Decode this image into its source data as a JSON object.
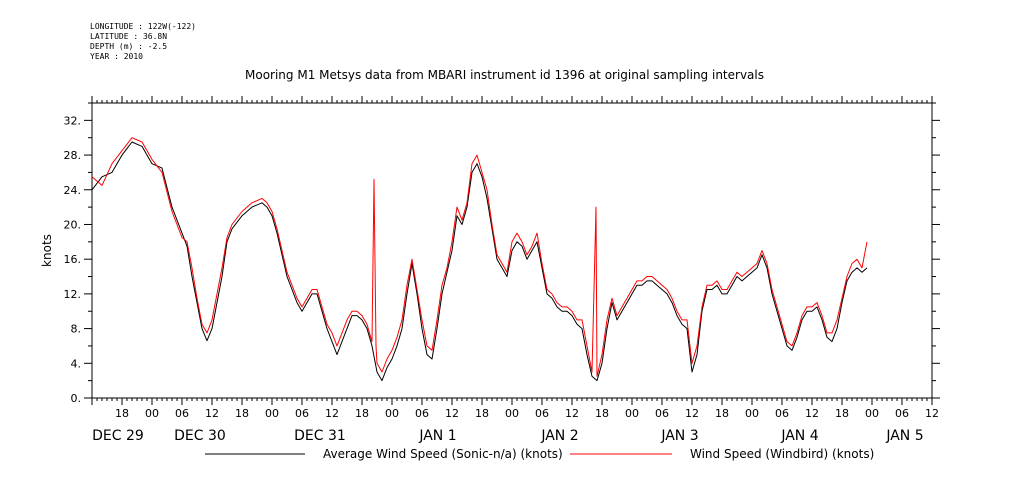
{
  "header": {
    "longitude": "LONGITUDE : 122W(-122)",
    "latitude": "LATITUDE : 36.8N",
    "depth": "DEPTH (m) : -2.5",
    "year": "YEAR : 2010"
  },
  "chart_data": {
    "type": "line",
    "title": "Mooring M1 Metsys data from MBARI instrument id 1396 at original sampling intervals",
    "ylabel": "knots",
    "xlabel": "",
    "ylim": [
      0,
      34
    ],
    "y_ticks": [
      "0.",
      "4.",
      "8.",
      "12.",
      "16.",
      "20.",
      "24.",
      "28.",
      "32."
    ],
    "x_range_hours": [
      0,
      168
    ],
    "x_hour_ticks": [
      "18",
      "00",
      "06",
      "12",
      "18",
      "00",
      "06",
      "12",
      "18",
      "00",
      "06",
      "12",
      "18",
      "00",
      "06",
      "12",
      "18",
      "00",
      "06",
      "12",
      "18",
      "00",
      "06",
      "12",
      "18",
      "00",
      "06",
      "12"
    ],
    "x_date_ticks": [
      "DEC 29",
      "DEC 30",
      "DEC 31",
      "JAN  1",
      "JAN  2",
      "JAN  3",
      "JAN  4",
      "JAN  5"
    ],
    "grid": false,
    "legend_position": "bottom",
    "series": [
      {
        "name": "Average Wind Speed (Sonic-n/a) (knots)",
        "color": "#000000",
        "points": [
          [
            0,
            24
          ],
          [
            2,
            25.5
          ],
          [
            4,
            26
          ],
          [
            6,
            28
          ],
          [
            8,
            29.5
          ],
          [
            10,
            29
          ],
          [
            12,
            27
          ],
          [
            14,
            26.5
          ],
          [
            16,
            22
          ],
          [
            18,
            19
          ],
          [
            19,
            17.5
          ],
          [
            20,
            14
          ],
          [
            21,
            11
          ],
          [
            22,
            8
          ],
          [
            23,
            6.6
          ],
          [
            24,
            8
          ],
          [
            25,
            11
          ],
          [
            26,
            14
          ],
          [
            27,
            18
          ],
          [
            28,
            19.5
          ],
          [
            30,
            21
          ],
          [
            32,
            22
          ],
          [
            34,
            22.5
          ],
          [
            35,
            22
          ],
          [
            36,
            21
          ],
          [
            37,
            19
          ],
          [
            38,
            16.5
          ],
          [
            39,
            14
          ],
          [
            40,
            12.5
          ],
          [
            41,
            11
          ],
          [
            42,
            10
          ],
          [
            43,
            11
          ],
          [
            44,
            12
          ],
          [
            45,
            12
          ],
          [
            46,
            10
          ],
          [
            47,
            8
          ],
          [
            48,
            6.5
          ],
          [
            49,
            5
          ],
          [
            50,
            6.5
          ],
          [
            51,
            8
          ],
          [
            52,
            9.5
          ],
          [
            53,
            9.5
          ],
          [
            54,
            9
          ],
          [
            55,
            8
          ],
          [
            56,
            6
          ],
          [
            57,
            3
          ],
          [
            58,
            2
          ],
          [
            59,
            3.5
          ],
          [
            60,
            4.5
          ],
          [
            61,
            6
          ],
          [
            62,
            8
          ],
          [
            63,
            12
          ],
          [
            64,
            15.5
          ],
          [
            65,
            12
          ],
          [
            66,
            8
          ],
          [
            67,
            5
          ],
          [
            68,
            4.5
          ],
          [
            69,
            8
          ],
          [
            70,
            12
          ],
          [
            71,
            14.5
          ],
          [
            72,
            17
          ],
          [
            73,
            21
          ],
          [
            74,
            20
          ],
          [
            75,
            22
          ],
          [
            76,
            26
          ],
          [
            77,
            27
          ],
          [
            78,
            25.5
          ],
          [
            79,
            23
          ],
          [
            80,
            19.5
          ],
          [
            81,
            16
          ],
          [
            82,
            15
          ],
          [
            83,
            14
          ],
          [
            84,
            17
          ],
          [
            85,
            18
          ],
          [
            86,
            17.5
          ],
          [
            87,
            16
          ],
          [
            88,
            17
          ],
          [
            89,
            18
          ],
          [
            90,
            15
          ],
          [
            91,
            12
          ],
          [
            92,
            11.5
          ],
          [
            93,
            10.5
          ],
          [
            94,
            10
          ],
          [
            95,
            10
          ],
          [
            96,
            9.5
          ],
          [
            97,
            8.5
          ],
          [
            98,
            8
          ],
          [
            99,
            5
          ],
          [
            100,
            2.5
          ],
          [
            101,
            2
          ],
          [
            102,
            4
          ],
          [
            103,
            8
          ],
          [
            104,
            11
          ],
          [
            105,
            9
          ],
          [
            106,
            10
          ],
          [
            107,
            11
          ],
          [
            108,
            12
          ],
          [
            109,
            13
          ],
          [
            110,
            13
          ],
          [
            111,
            13.5
          ],
          [
            112,
            13.5
          ],
          [
            113,
            13
          ],
          [
            114,
            12.5
          ],
          [
            115,
            12
          ],
          [
            116,
            11
          ],
          [
            117,
            9.5
          ],
          [
            118,
            8.5
          ],
          [
            119,
            8
          ],
          [
            120,
            3
          ],
          [
            121,
            5
          ],
          [
            122,
            10
          ],
          [
            123,
            12.5
          ],
          [
            124,
            12.5
          ],
          [
            125,
            13
          ],
          [
            126,
            12
          ],
          [
            127,
            12
          ],
          [
            128,
            13
          ],
          [
            129,
            14
          ],
          [
            130,
            13.5
          ],
          [
            131,
            14
          ],
          [
            132,
            14.5
          ],
          [
            133,
            15
          ],
          [
            134,
            16.5
          ],
          [
            135,
            15
          ],
          [
            136,
            12
          ],
          [
            137,
            10
          ],
          [
            138,
            8
          ],
          [
            139,
            6
          ],
          [
            140,
            5.5
          ],
          [
            141,
            7
          ],
          [
            142,
            9
          ],
          [
            143,
            10
          ],
          [
            144,
            10
          ],
          [
            145,
            10.5
          ],
          [
            146,
            9
          ],
          [
            147,
            7
          ],
          [
            148,
            6.5
          ],
          [
            149,
            8
          ],
          [
            150,
            11
          ],
          [
            151,
            13.5
          ],
          [
            152,
            14.5
          ],
          [
            153,
            15
          ],
          [
            154,
            14.5
          ],
          [
            155,
            15
          ]
        ]
      },
      {
        "name": "Wind Speed (Windbird) (knots)",
        "color": "#ff0000",
        "points": [
          [
            0,
            25.5
          ],
          [
            2,
            24.5
          ],
          [
            4,
            27
          ],
          [
            6,
            28.5
          ],
          [
            8,
            30
          ],
          [
            10,
            29.5
          ],
          [
            12,
            27.5
          ],
          [
            14,
            26
          ],
          [
            16,
            21.5
          ],
          [
            18,
            18.5
          ],
          [
            19,
            18
          ],
          [
            20,
            15
          ],
          [
            21,
            11.5
          ],
          [
            22,
            8.5
          ],
          [
            23,
            7.5
          ],
          [
            24,
            9
          ],
          [
            25,
            12
          ],
          [
            26,
            15
          ],
          [
            27,
            18.5
          ],
          [
            28,
            20
          ],
          [
            30,
            21.5
          ],
          [
            32,
            22.5
          ],
          [
            34,
            23
          ],
          [
            35,
            22.5
          ],
          [
            36,
            21.5
          ],
          [
            37,
            19.5
          ],
          [
            38,
            17
          ],
          [
            39,
            14.5
          ],
          [
            40,
            13
          ],
          [
            41,
            11.5
          ],
          [
            42,
            10.5
          ],
          [
            43,
            11.5
          ],
          [
            44,
            12.5
          ],
          [
            45,
            12.5
          ],
          [
            46,
            10.5
          ],
          [
            47,
            8.5
          ],
          [
            48,
            7.5
          ],
          [
            49,
            6
          ],
          [
            50,
            7.5
          ],
          [
            51,
            9
          ],
          [
            52,
            10
          ],
          [
            53,
            10
          ],
          [
            54,
            9.5
          ],
          [
            55,
            8.5
          ],
          [
            56,
            6.5
          ],
          [
            56.4,
            25.2
          ],
          [
            56.8,
            6
          ],
          [
            57,
            4
          ],
          [
            58,
            3
          ],
          [
            59,
            4.5
          ],
          [
            60,
            5.5
          ],
          [
            61,
            7
          ],
          [
            62,
            9
          ],
          [
            63,
            13
          ],
          [
            64,
            16
          ],
          [
            65,
            12.5
          ],
          [
            66,
            9
          ],
          [
            67,
            6
          ],
          [
            68,
            5.5
          ],
          [
            69,
            9
          ],
          [
            70,
            13
          ],
          [
            71,
            15
          ],
          [
            72,
            18
          ],
          [
            73,
            22
          ],
          [
            74,
            20.5
          ],
          [
            75,
            22.5
          ],
          [
            76,
            27
          ],
          [
            77,
            28
          ],
          [
            78,
            26
          ],
          [
            79,
            24
          ],
          [
            80,
            20
          ],
          [
            81,
            16.5
          ],
          [
            82,
            15.5
          ],
          [
            83,
            14.5
          ],
          [
            84,
            18
          ],
          [
            85,
            19
          ],
          [
            86,
            18
          ],
          [
            87,
            16.5
          ],
          [
            88,
            17.5
          ],
          [
            89,
            19
          ],
          [
            90,
            15.5
          ],
          [
            91,
            12.5
          ],
          [
            92,
            12
          ],
          [
            93,
            11
          ],
          [
            94,
            10.5
          ],
          [
            95,
            10.5
          ],
          [
            96,
            10
          ],
          [
            97,
            9
          ],
          [
            98,
            9
          ],
          [
            99,
            6
          ],
          [
            100,
            3
          ],
          [
            100.8,
            22
          ],
          [
            101,
            2.5
          ],
          [
            102,
            5
          ],
          [
            103,
            9
          ],
          [
            104,
            11.5
          ],
          [
            105,
            9.5
          ],
          [
            106,
            10.5
          ],
          [
            107,
            11.5
          ],
          [
            108,
            12.5
          ],
          [
            109,
            13.5
          ],
          [
            110,
            13.5
          ],
          [
            111,
            14
          ],
          [
            112,
            14
          ],
          [
            113,
            13.5
          ],
          [
            114,
            13
          ],
          [
            115,
            12.5
          ],
          [
            116,
            11.5
          ],
          [
            117,
            10
          ],
          [
            118,
            9
          ],
          [
            119,
            9
          ],
          [
            120,
            4
          ],
          [
            121,
            6
          ],
          [
            122,
            10.5
          ],
          [
            123,
            13
          ],
          [
            124,
            13
          ],
          [
            125,
            13.5
          ],
          [
            126,
            12.5
          ],
          [
            127,
            12.5
          ],
          [
            128,
            13.5
          ],
          [
            129,
            14.5
          ],
          [
            130,
            14
          ],
          [
            131,
            14.5
          ],
          [
            132,
            15
          ],
          [
            133,
            15.5
          ],
          [
            134,
            17
          ],
          [
            135,
            15.5
          ],
          [
            136,
            12.5
          ],
          [
            137,
            10.5
          ],
          [
            138,
            8.5
          ],
          [
            139,
            6.5
          ],
          [
            140,
            6
          ],
          [
            141,
            7.5
          ],
          [
            142,
            9.5
          ],
          [
            143,
            10.5
          ],
          [
            144,
            10.5
          ],
          [
            145,
            11
          ],
          [
            146,
            9.5
          ],
          [
            147,
            7.5
          ],
          [
            148,
            7.5
          ],
          [
            149,
            9
          ],
          [
            150,
            11.5
          ],
          [
            151,
            14
          ],
          [
            152,
            15.5
          ],
          [
            153,
            16
          ],
          [
            154,
            15
          ],
          [
            155,
            18
          ]
        ]
      }
    ]
  }
}
